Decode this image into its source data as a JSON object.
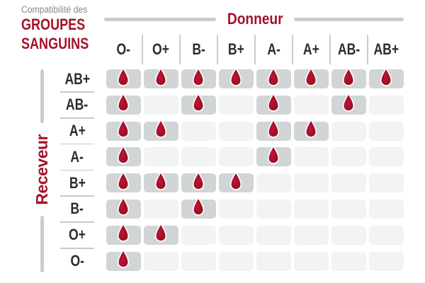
{
  "title": {
    "kicker": "Compatibilité des",
    "line1": "GROUPES",
    "line2": "SANGUINS"
  },
  "chart_data": {
    "type": "heatmap",
    "title": "Compatibilité des groupes sanguins",
    "x_axis_label": "Donneur",
    "y_axis_label": "Receveur",
    "columns": [
      "O-",
      "O+",
      "B-",
      "B+",
      "A-",
      "A+",
      "AB-",
      "AB+"
    ],
    "rows": [
      "AB+",
      "AB-",
      "A+",
      "A-",
      "B+",
      "B-",
      "O+",
      "O-"
    ],
    "matrix": [
      [
        1,
        1,
        1,
        1,
        1,
        1,
        1,
        1
      ],
      [
        1,
        0,
        1,
        0,
        1,
        0,
        1,
        0
      ],
      [
        1,
        1,
        0,
        0,
        1,
        1,
        0,
        0
      ],
      [
        1,
        0,
        0,
        0,
        1,
        0,
        0,
        0
      ],
      [
        1,
        1,
        1,
        1,
        0,
        0,
        0,
        0
      ],
      [
        1,
        0,
        1,
        0,
        0,
        0,
        0,
        0
      ],
      [
        1,
        1,
        0,
        0,
        0,
        0,
        0,
        0
      ],
      [
        1,
        0,
        0,
        0,
        0,
        0,
        0,
        0
      ]
    ],
    "marker_icon": "blood-drop-icon",
    "legend_position": "none",
    "grid_style": "rounded-cells"
  },
  "colors": {
    "accent_red": "#A31329",
    "kicker_gray": "#8A8A8A",
    "header_ink": "#2D2D2D",
    "rule_gray": "#C9CDCD",
    "separator_gray": "#C6CACA",
    "cell_compatible": "#D2D5D5",
    "cell_incompatible": "#F2F3F3",
    "drop_inner": "#BE1338",
    "drop_outer": "#8F0C23",
    "drop_stroke": "#FFFFFF"
  }
}
